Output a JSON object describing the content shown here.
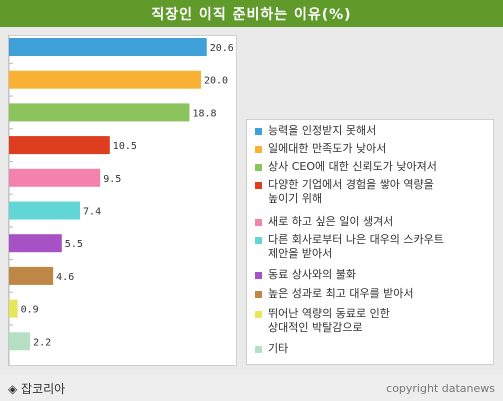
{
  "title": "직장인 이직 준비하는 이유(%)",
  "footer": {
    "source": "◈ 잡코리아",
    "copyright": "copyright datanews"
  },
  "chart_data": {
    "type": "bar",
    "orientation": "horizontal",
    "title": "직장인 이직 준비하는 이유(%)",
    "xlim": [
      0,
      25
    ],
    "categories": [
      "능력을 인정받지 못해서",
      "일에대한 만족도가 낮아서",
      "상사 CEO에 대한 신뢰도가 낮아져서",
      "다양한 기업에서 경험을 쌓아 역량을 높이기 위해",
      "새로 하고 싶은 일이 생겨서",
      "다른 회사로부터 나은 대우의 스카우트 제안을 받아서",
      "동료 상사와의 불화",
      "높은 성과로 최고 대우를 받아서",
      "뛰어난 역량의 동료로 인한 상대적인 박탈감으로",
      "기타"
    ],
    "legend_lines": [
      [
        "능력을 인정받지 못해서"
      ],
      [
        "일에대한 만족도가 낮아서"
      ],
      [
        "상사 CEO에 대한 신뢰도가 낮아져서"
      ],
      [
        "다양한 기업에서 경험을 쌓아 역량을",
        "높이기 위해"
      ],
      [
        "새로 하고 싶은 일이 생겨서"
      ],
      [
        "다른 회사로부터 나은 대우의 스카우트",
        "제안을 받아서"
      ],
      [
        "동료 상사와의 불화"
      ],
      [
        "높은 성과로 최고 대우를 받아서"
      ],
      [
        "뛰어난 역량의 동료로 인한",
        "상대적인 박탈감으로"
      ],
      [
        "기타"
      ]
    ],
    "values": [
      20.6,
      20.0,
      18.8,
      10.5,
      9.5,
      7.4,
      5.5,
      4.6,
      0.9,
      2.2
    ],
    "value_labels": [
      "20.6",
      "20.0",
      "18.8",
      "10.5",
      "9.5",
      "7.4",
      "5.5",
      "4.6",
      "0.9",
      "2.2"
    ],
    "colors": [
      "#3fa1d8",
      "#f9b233",
      "#8dc35c",
      "#dc3e1e",
      "#f383ac",
      "#62d6d6",
      "#a651c4",
      "#be8745",
      "#e7e75c",
      "#b5e0c3"
    ],
    "legend": "right",
    "grid": false
  }
}
